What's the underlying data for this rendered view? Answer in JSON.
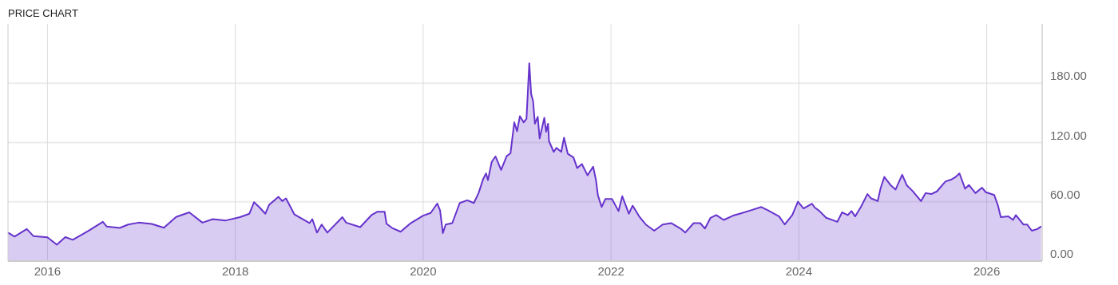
{
  "chart_data": {
    "type": "area",
    "title": "PRICE CHART",
    "x": [
      2015.58,
      2015.65,
      2015.78,
      2015.85,
      2016.0,
      2016.1,
      2016.19,
      2016.27,
      2016.43,
      2016.59,
      2016.63,
      2016.77,
      2016.86,
      2016.97,
      2017.11,
      2017.24,
      2017.37,
      2017.51,
      2017.65,
      2017.76,
      2017.9,
      2018.05,
      2018.15,
      2018.2,
      2018.26,
      2018.32,
      2018.36,
      2018.46,
      2018.5,
      2018.54,
      2018.63,
      2018.79,
      2018.82,
      2018.87,
      2018.92,
      2018.98,
      2019.14,
      2019.18,
      2019.33,
      2019.45,
      2019.51,
      2019.59,
      2019.61,
      2019.67,
      2019.76,
      2019.86,
      2020.0,
      2020.08,
      2020.15,
      2020.18,
      2020.21,
      2020.24,
      2020.31,
      2020.39,
      2020.47,
      2020.54,
      2020.59,
      2020.64,
      2020.67,
      2020.69,
      2020.73,
      2020.77,
      2020.83,
      2020.89,
      2020.93,
      2020.97,
      2021.0,
      2021.03,
      2021.07,
      2021.1,
      2021.13,
      2021.15,
      2021.17,
      2021.19,
      2021.22,
      2021.24,
      2021.29,
      2021.31,
      2021.33,
      2021.34,
      2021.39,
      2021.42,
      2021.47,
      2021.5,
      2021.54,
      2021.6,
      2021.64,
      2021.69,
      2021.75,
      2021.81,
      2021.84,
      2021.86,
      2021.9,
      2021.94,
      2022.01,
      2022.08,
      2022.12,
      2022.19,
      2022.23,
      2022.3,
      2022.37,
      2022.46,
      2022.55,
      2022.64,
      2022.74,
      2022.79,
      2022.88,
      2022.95,
      2023.0,
      2023.06,
      2023.12,
      2023.2,
      2023.3,
      2023.37,
      2023.49,
      2023.6,
      2023.67,
      2023.79,
      2023.85,
      2023.93,
      2023.99,
      2024.05,
      2024.14,
      2024.17,
      2024.22,
      2024.29,
      2024.41,
      2024.46,
      2024.52,
      2024.56,
      2024.6,
      2024.66,
      2024.73,
      2024.77,
      2024.84,
      2024.87,
      2024.91,
      2024.98,
      2025.03,
      2025.1,
      2025.15,
      2025.21,
      2025.3,
      2025.35,
      2025.41,
      2025.47,
      2025.56,
      2025.62,
      2025.67,
      2025.71,
      2025.77,
      2025.81,
      2025.88,
      2025.95,
      2025.99,
      2026.08,
      2026.12,
      2026.15,
      2026.23,
      2026.28,
      2026.31,
      2026.39,
      2026.43,
      2026.48,
      2026.54,
      2026.58
    ],
    "series": [
      {
        "color": "#6633cc",
        "values": [
          28.8,
          24.8,
          32.4,
          25.3,
          24,
          16.6,
          24.2,
          21.5,
          30.2,
          39.7,
          35,
          33.5,
          37,
          38.9,
          37.6,
          33.7,
          44.6,
          49.3,
          38.9,
          42.4,
          41.1,
          44.4,
          47.9,
          59.6,
          54.1,
          47.9,
          56.9,
          65,
          60.7,
          63.4,
          47.1,
          38.4,
          42.4,
          28.8,
          37,
          28.8,
          44.4,
          38.9,
          34.3,
          46.5,
          49.8,
          49.8,
          37.8,
          33.5,
          29.7,
          37.8,
          46,
          48.7,
          58.2,
          51.4,
          28.3,
          37,
          38.4,
          58.8,
          61.5,
          58.8,
          68.8,
          83.3,
          88.7,
          81.9,
          100.4,
          105.9,
          92.2,
          106.4,
          109.1,
          140.4,
          131.4,
          146.7,
          140.4,
          143.9,
          200.3,
          169,
          162.2,
          139,
          145.9,
          124.1,
          145,
          130.9,
          139,
          121.4,
          110.5,
          114.6,
          110.5,
          124.9,
          108.6,
          105,
          94.1,
          98.2,
          86.8,
          95.5,
          81.9,
          66.9,
          54.7,
          62.9,
          62.9,
          50.6,
          65.6,
          47.9,
          56.1,
          45.2,
          37,
          30.7,
          37,
          38.4,
          32.9,
          28.8,
          38.4,
          38.4,
          32.9,
          43.8,
          46.5,
          41.6,
          46,
          47.9,
          51.4,
          54.7,
          51.4,
          45.2,
          37,
          46.5,
          60.1,
          53.3,
          58,
          54.1,
          50.6,
          43.8,
          39.7,
          49.3,
          46.5,
          50.6,
          45.2,
          54.7,
          67.8,
          63.4,
          60.7,
          73.7,
          85.2,
          76.5,
          72.4,
          87.3,
          76.5,
          71,
          60.7,
          68.8,
          67.8,
          70.5,
          80.5,
          82.4,
          85.2,
          88.7,
          73.2,
          77,
          68.8,
          74.3,
          69.7,
          66.9,
          56.1,
          44.4,
          45.2,
          41.6,
          46.5,
          37,
          37,
          30.7,
          32.4,
          35.1
        ]
      }
    ],
    "xlim": [
      2015.58,
      2026.59
    ],
    "xticks": [
      2016,
      2018,
      2020,
      2022,
      2024,
      2026
    ],
    "ylim": [
      0,
      240
    ],
    "yticks": [
      {
        "value": 0,
        "label": "0.00"
      },
      {
        "value": 60,
        "label": "60.00"
      },
      {
        "value": 120,
        "label": "120.00"
      },
      {
        "value": 180,
        "label": "180.00"
      }
    ],
    "grid": true,
    "marker": "none",
    "line_style": "solid"
  }
}
